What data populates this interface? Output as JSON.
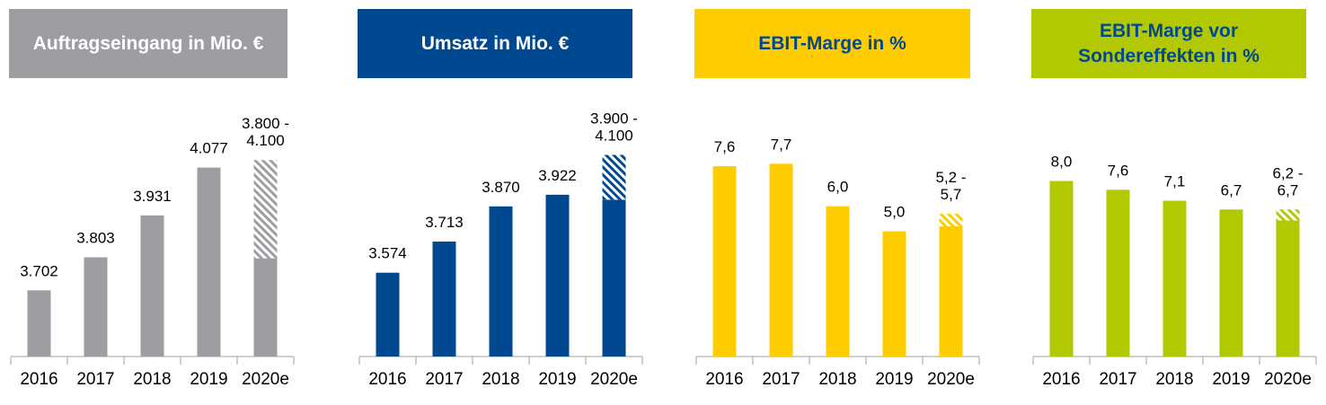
{
  "chart_data": [
    {
      "type": "bar",
      "title": "Auftragseingang in Mio. €",
      "header_bg": "#9d9da2",
      "header_fg": "#ffffff",
      "bar_color": "#9d9da2",
      "categories": [
        "2016",
        "2017",
        "2018",
        "2019",
        "2020e"
      ],
      "values": [
        3702,
        3803,
        3931,
        4077,
        3800
      ],
      "range_high": [
        null,
        null,
        null,
        null,
        4100
      ],
      "labels": [
        "3.702",
        "3.803",
        "3.931",
        "4.077",
        "3.800 -\n4.100"
      ],
      "ylim": [
        3500,
        4150
      ],
      "grid": false
    },
    {
      "type": "bar",
      "title": "Umsatz in Mio. €",
      "header_bg": "#004990",
      "header_fg": "#ffffff",
      "bar_color": "#004990",
      "categories": [
        "2016",
        "2017",
        "2018",
        "2019",
        "2020e"
      ],
      "values": [
        3574,
        3713,
        3870,
        3922,
        3900
      ],
      "range_high": [
        null,
        null,
        null,
        null,
        4100
      ],
      "labels": [
        "3.574",
        "3.713",
        "3.870",
        "3.922",
        "3.900 -\n4.100"
      ],
      "ylim": [
        3200,
        4150
      ],
      "grid": false
    },
    {
      "type": "bar",
      "title": "EBIT-Marge in %",
      "header_bg": "#ffcc00",
      "header_fg": "#004990",
      "bar_color": "#ffcc00",
      "categories": [
        "2016",
        "2017",
        "2018",
        "2019",
        "2020e"
      ],
      "values": [
        7.6,
        7.7,
        6.0,
        5.0,
        5.2
      ],
      "range_high": [
        null,
        null,
        null,
        null,
        5.7
      ],
      "labels": [
        "7,6",
        "7,7",
        "6,0",
        "5,0",
        "5,2 -\n5,7"
      ],
      "ylim": [
        0,
        8.5
      ],
      "grid": false
    },
    {
      "type": "bar",
      "title": "EBIT-Marge vor\nSondereffekten in %",
      "header_bg": "#b2c800",
      "header_fg": "#004990",
      "bar_color": "#b2c800",
      "categories": [
        "2016",
        "2017",
        "2018",
        "2019",
        "2020e"
      ],
      "values": [
        8.0,
        7.6,
        7.1,
        6.7,
        6.2
      ],
      "range_high": [
        null,
        null,
        null,
        null,
        6.7
      ],
      "labels": [
        "8,0",
        "7,6",
        "7,1",
        "6,7",
        "6,2 -\n6,7"
      ],
      "ylim": [
        0,
        9.7
      ],
      "grid": false
    }
  ]
}
